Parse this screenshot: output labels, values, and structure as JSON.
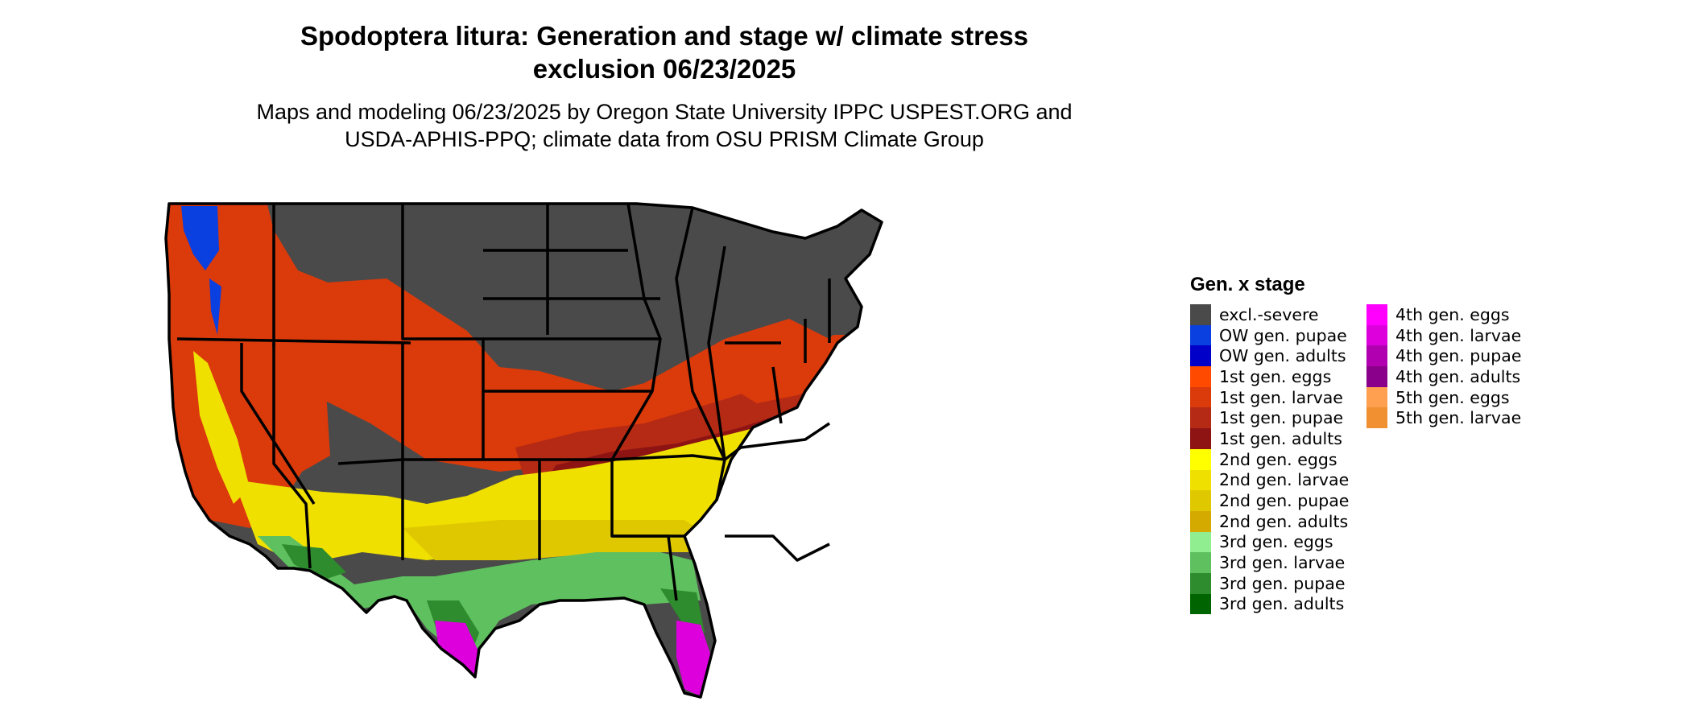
{
  "title_line1": "Spodoptera litura: Generation and stage w/ climate stress",
  "title_line2": "exclusion 06/23/2025",
  "subtitle_line1": "Maps and modeling 06/23/2025 by Oregon State University IPPC USPEST.ORG and",
  "subtitle_line2": "USDA-APHIS-PPQ; climate data from OSU PRISM Climate Group",
  "legend": {
    "title": "Gen. x stage",
    "items": [
      {
        "label": "excl.-severe",
        "color": "#4a4a4a"
      },
      {
        "label": "OW gen. pupae",
        "color": "#0a3fe0"
      },
      {
        "label": "OW gen. adults",
        "color": "#0000c8"
      },
      {
        "label": "1st gen. eggs",
        "color": "#ff4a00"
      },
      {
        "label": "1st gen. larvae",
        "color": "#db3a0b"
      },
      {
        "label": "1st gen. pupae",
        "color": "#b52a14"
      },
      {
        "label": "1st gen. adults",
        "color": "#8e1414"
      },
      {
        "label": "2nd gen. eggs",
        "color": "#ffff00"
      },
      {
        "label": "2nd gen. larvae",
        "color": "#f0e000"
      },
      {
        "label": "2nd gen. pupae",
        "color": "#e0c800"
      },
      {
        "label": "2nd gen. adults",
        "color": "#d4aa00"
      },
      {
        "label": "3rd gen. eggs",
        "color": "#90ee90"
      },
      {
        "label": "3rd gen. larvae",
        "color": "#5fc05f"
      },
      {
        "label": "3rd gen. pupae",
        "color": "#2e8b2e"
      },
      {
        "label": "3rd gen. adults",
        "color": "#006400"
      },
      {
        "label": "4th gen. eggs",
        "color": "#ff00ff"
      },
      {
        "label": "4th gen. larvae",
        "color": "#dd00dd"
      },
      {
        "label": "4th gen. pupae",
        "color": "#b000b0"
      },
      {
        "label": "4th gen. adults",
        "color": "#8b008b"
      },
      {
        "label": "5th gen. eggs",
        "color": "#ffa050"
      },
      {
        "label": "5th gen. larvae",
        "color": "#f09030"
      }
    ]
  }
}
